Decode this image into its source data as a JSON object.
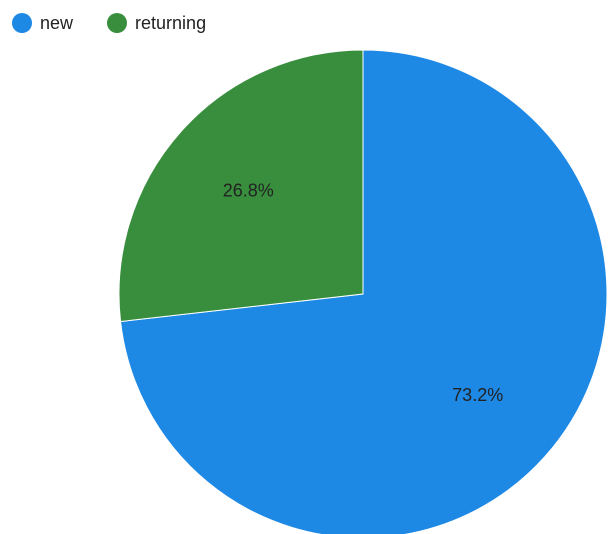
{
  "chart_data": {
    "type": "pie",
    "title": "",
    "legend_position": "top-left",
    "slices": [
      {
        "label": "new",
        "value": 73.2,
        "display": "73.2%",
        "color": "#1e88e5"
      },
      {
        "label": "returning",
        "value": 26.8,
        "display": "26.8%",
        "color": "#388e3c"
      }
    ]
  }
}
